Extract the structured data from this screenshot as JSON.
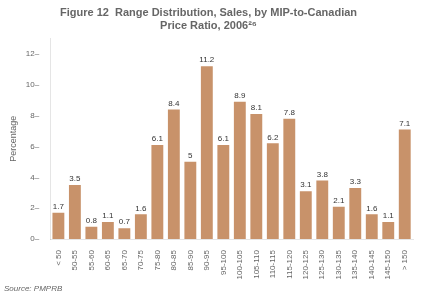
{
  "chart_data": {
    "type": "bar",
    "title": [
      "Figure 12  Range Distribution, Sales, by MIP-to-Canadian",
      "Price Ratio, 2006²⁶"
    ],
    "ylabel": "Percentage",
    "source": "Source: PMPRB",
    "categories": [
      "< 50",
      "50-55",
      "55-60",
      "60-65",
      "65-70",
      "70-75",
      "75-80",
      "80-85",
      "85-90",
      "90-95",
      "95-100",
      "100-105",
      "105-110",
      "110-115",
      "115-120",
      "120-125",
      "125-130",
      "130-135",
      "135-140",
      "140-145",
      "145-150",
      "> 150"
    ],
    "values": [
      1.7,
      3.5,
      0.8,
      1.1,
      0.7,
      1.6,
      6.1,
      8.4,
      5.0,
      11.2,
      6.1,
      8.9,
      8.1,
      6.2,
      7.8,
      3.1,
      3.8,
      2.1,
      3.3,
      1.6,
      1.1,
      7.1
    ],
    "color": "#c8926a",
    "ylim": [
      0,
      13
    ],
    "yticks": [
      {
        "value": 0,
        "label": "0–"
      },
      {
        "value": 2,
        "label": "2–"
      },
      {
        "value": 4,
        "label": "4–"
      },
      {
        "value": 6,
        "label": "6–"
      },
      {
        "value": 8,
        "label": "8–"
      },
      {
        "value": 10,
        "label": "10–"
      },
      {
        "value": 12,
        "label": "12–"
      }
    ],
    "grid": false,
    "data_labels": true
  }
}
